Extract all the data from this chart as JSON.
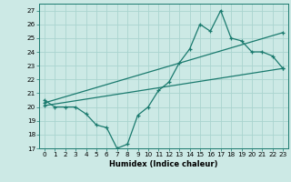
{
  "xlabel": "Humidex (Indice chaleur)",
  "bg_color": "#cce9e5",
  "line_color": "#1a7a6e",
  "grid_color": "#aad4cf",
  "xlim": [
    -0.5,
    23.5
  ],
  "ylim": [
    17,
    27.5
  ],
  "xticks": [
    0,
    1,
    2,
    3,
    4,
    5,
    6,
    7,
    8,
    9,
    10,
    11,
    12,
    13,
    14,
    15,
    16,
    17,
    18,
    19,
    20,
    21,
    22,
    23
  ],
  "yticks": [
    17,
    18,
    19,
    20,
    21,
    22,
    23,
    24,
    25,
    26,
    27
  ],
  "line1_x": [
    0,
    1,
    2,
    3,
    4,
    5,
    6,
    7,
    8,
    9,
    10,
    11,
    12,
    13,
    14,
    15,
    16,
    17,
    18,
    19,
    20,
    21,
    22,
    23
  ],
  "line1_y": [
    20.5,
    20.0,
    20.0,
    20.0,
    19.5,
    18.7,
    18.5,
    17.0,
    17.3,
    19.4,
    20.0,
    21.2,
    21.8,
    23.2,
    24.2,
    26.0,
    25.5,
    27.0,
    25.0,
    24.8,
    24.0,
    24.0,
    23.7,
    22.8
  ],
  "line2_x": [
    0,
    23
  ],
  "line2_y": [
    20.3,
    25.4
  ],
  "line3_x": [
    0,
    23
  ],
  "line3_y": [
    20.1,
    22.8
  ]
}
